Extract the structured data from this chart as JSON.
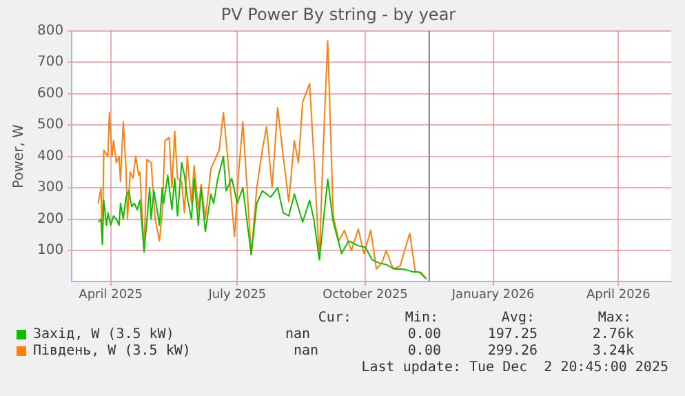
{
  "chart_data": {
    "type": "line",
    "title": "PV Power By string - by year",
    "ylabel": "Power, W",
    "xlim": [
      "2025-03-04",
      "2026-05-09"
    ],
    "xticks": [
      {
        "value": "2025-04-01",
        "label": "April 2025"
      },
      {
        "value": "2025-07-01",
        "label": "July 2025"
      },
      {
        "value": "2025-10-01",
        "label": "October 2025"
      },
      {
        "value": "2026-01-01",
        "label": "January 2026"
      },
      {
        "value": "2026-04-01",
        "label": "April 2026"
      }
    ],
    "ylim": [
      0,
      800
    ],
    "yticks": [
      100,
      200,
      300,
      400,
      500,
      600,
      700,
      800
    ],
    "grid": true,
    "legend": "bottom",
    "ref_lines": [
      {
        "axis": "x",
        "value": "2025-11-16",
        "color": "#808080"
      }
    ],
    "annotations": [
      "Cur:",
      "Min:",
      "Avg:",
      "Max:",
      "nan",
      "0.00",
      "197.25",
      "2.76k",
      "nan",
      "0.00",
      "299.26",
      "3.24k",
      "Last update: Tue Dec  2 20:45:00 2025"
    ],
    "series": [
      {
        "name": "Захід, W (3.5 kW)",
        "color": "#11bb00",
        "x": [
          "2025-03-23",
          "2025-03-25",
          "2025-03-26",
          "2025-03-27",
          "2025-03-29",
          "2025-03-30",
          "2025-04-01",
          "2025-04-03",
          "2025-04-05",
          "2025-04-07",
          "2025-04-08",
          "2025-04-10",
          "2025-04-12",
          "2025-04-14",
          "2025-04-16",
          "2025-04-18",
          "2025-04-20",
          "2025-04-22",
          "2025-04-25",
          "2025-04-29",
          "2025-04-30",
          "2025-05-02",
          "2025-05-04",
          "2025-05-06",
          "2025-05-08",
          "2025-05-09",
          "2025-05-12",
          "2025-05-15",
          "2025-05-17",
          "2025-05-19",
          "2025-05-22",
          "2025-05-24",
          "2025-05-26",
          "2025-05-29",
          "2025-05-31",
          "2025-06-03",
          "2025-06-05",
          "2025-06-08",
          "2025-06-12",
          "2025-06-14",
          "2025-06-17",
          "2025-06-21",
          "2025-06-23",
          "2025-06-27",
          "2025-07-01",
          "2025-07-05",
          "2025-07-11",
          "2025-07-15",
          "2025-07-19",
          "2025-07-25",
          "2025-07-30",
          "2025-08-03",
          "2025-08-07",
          "2025-08-11",
          "2025-08-17",
          "2025-08-22",
          "2025-08-25",
          "2025-08-29",
          "2025-09-04",
          "2025-09-08",
          "2025-09-14",
          "2025-09-19",
          "2025-09-26",
          "2025-10-01",
          "2025-10-06",
          "2025-10-11",
          "2025-10-16",
          "2025-10-22",
          "2025-10-29",
          "2025-11-04",
          "2025-11-09",
          "2025-11-14"
        ],
        "values": [
          190,
          200,
          120,
          260,
          180,
          220,
          180,
          210,
          200,
          180,
          250,
          200,
          270,
          290,
          240,
          250,
          230,
          260,
          95,
          300,
          200,
          290,
          240,
          180,
          300,
          250,
          340,
          230,
          330,
          210,
          380,
          340,
          270,
          200,
          330,
          180,
          300,
          160,
          280,
          250,
          330,
          400,
          290,
          330,
          250,
          300,
          86,
          250,
          290,
          270,
          300,
          220,
          210,
          280,
          190,
          260,
          200,
          70,
          327,
          190,
          90,
          130,
          115,
          110,
          70,
          60,
          55,
          41,
          40,
          32,
          30,
          9
        ]
      },
      {
        "name": "Південь, W (3.5 kW)",
        "color": "#ff7f0e",
        "x": [
          "2025-03-23",
          "2025-03-25",
          "2025-03-26",
          "2025-03-27",
          "2025-03-30",
          "2025-03-31",
          "2025-04-02",
          "2025-04-03",
          "2025-04-05",
          "2025-04-07",
          "2025-04-08",
          "2025-04-10",
          "2025-04-12",
          "2025-04-13",
          "2025-04-15",
          "2025-04-17",
          "2025-04-19",
          "2025-04-21",
          "2025-04-22",
          "2025-04-25",
          "2025-04-27",
          "2025-04-30",
          "2025-05-03",
          "2025-05-06",
          "2025-05-08",
          "2025-05-10",
          "2025-05-13",
          "2025-05-15",
          "2025-05-17",
          "2025-05-19",
          "2025-05-22",
          "2025-05-24",
          "2025-05-26",
          "2025-05-29",
          "2025-05-31",
          "2025-06-03",
          "2025-06-05",
          "2025-06-08",
          "2025-06-12",
          "2025-06-14",
          "2025-06-18",
          "2025-06-21",
          "2025-06-24",
          "2025-06-29",
          "2025-07-02",
          "2025-07-05",
          "2025-07-08",
          "2025-07-11",
          "2025-07-15",
          "2025-07-19",
          "2025-07-22",
          "2025-07-26",
          "2025-07-30",
          "2025-08-03",
          "2025-08-07",
          "2025-08-11",
          "2025-08-14",
          "2025-08-17",
          "2025-08-22",
          "2025-08-25",
          "2025-08-29",
          "2025-09-01",
          "2025-09-04",
          "2025-09-08",
          "2025-09-12",
          "2025-09-16",
          "2025-09-21",
          "2025-09-26",
          "2025-09-30",
          "2025-10-05",
          "2025-10-09",
          "2025-10-13",
          "2025-10-16",
          "2025-10-21",
          "2025-10-26",
          "2025-11-02",
          "2025-11-06",
          "2025-11-10",
          "2025-11-14"
        ],
        "values": [
          250,
          300,
          120,
          420,
          400,
          540,
          400,
          450,
          380,
          400,
          320,
          510,
          360,
          200,
          350,
          330,
          400,
          340,
          350,
          100,
          390,
          380,
          200,
          130,
          220,
          450,
          460,
          300,
          480,
          330,
          320,
          220,
          400,
          250,
          370,
          230,
          310,
          200,
          360,
          380,
          420,
          540,
          400,
          145,
          350,
          510,
          300,
          86,
          300,
          420,
          495,
          300,
          555,
          400,
          255,
          450,
          380,
          573,
          632,
          400,
          73,
          450,
          768,
          209,
          130,
          164,
          100,
          168,
          90,
          164,
          41,
          60,
          100,
          41,
          50,
          155,
          32,
          30,
          9
        ]
      }
    ]
  }
}
